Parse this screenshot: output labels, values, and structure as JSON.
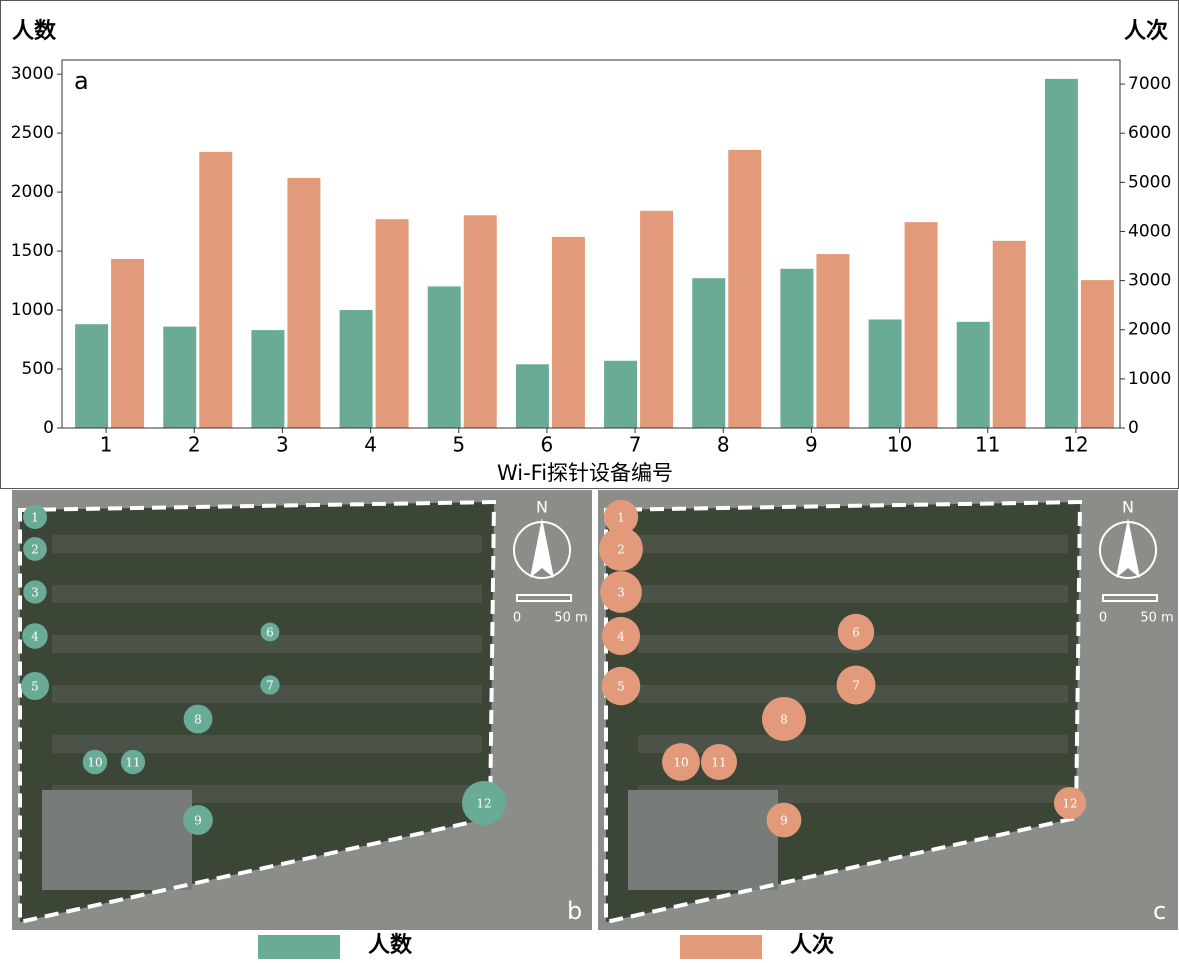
{
  "chart_data": {
    "type": "bar",
    "panel_label": "a",
    "y_label": "人数",
    "y2_label": "人次",
    "x_label": "Wi-Fi探针设备编号",
    "categories": [
      "1",
      "2",
      "3",
      "4",
      "5",
      "6",
      "7",
      "8",
      "9",
      "10",
      "11",
      "12"
    ],
    "series": [
      {
        "name": "人数",
        "color": "#6aab97",
        "values": [
          880,
          860,
          830,
          1000,
          1200,
          540,
          570,
          1270,
          1350,
          920,
          900,
          2960
        ]
      },
      {
        "name": "人次",
        "color": "#e39a7a",
        "axis": "y2",
        "values": [
          3440,
          5620,
          5090,
          4250,
          4330,
          3890,
          4420,
          5660,
          3540,
          4190,
          3810,
          3010
        ]
      }
    ],
    "ylim": [
      0,
      3120
    ],
    "yticks": [
      0,
      500,
      1000,
      1500,
      2000,
      2500,
      3000
    ],
    "y2lim": [
      0,
      7490
    ],
    "y2ticks": [
      0,
      1000,
      2000,
      3000,
      4000,
      5000,
      6000,
      7000
    ]
  },
  "maps": {
    "panels": [
      "b",
      "c"
    ],
    "north": "N",
    "scale": [
      "0",
      "50 m"
    ]
  }
}
